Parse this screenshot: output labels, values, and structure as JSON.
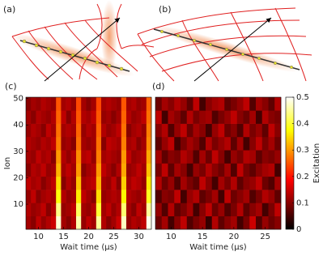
{
  "panel_labels": [
    "(a)",
    "(b)"
  ],
  "chart_data": [
    {
      "type": "heatmap",
      "label": "(c)",
      "xlabel": "Wait time (μs)",
      "ylabel": "Ion",
      "x": [
        8,
        9,
        10,
        11,
        12,
        13,
        14,
        15,
        16,
        17,
        18,
        19,
        20,
        21,
        22,
        23,
        24,
        25,
        26,
        27,
        28,
        29,
        30,
        31,
        32
      ],
      "y": [
        3,
        8,
        13,
        18,
        23,
        28,
        33,
        38,
        43,
        48
      ],
      "xlim": [
        7.5,
        32.5
      ],
      "ylim": [
        0.5,
        50.5
      ],
      "xticks": [
        10,
        15,
        20,
        25,
        30
      ],
      "yticks": [
        10,
        20,
        30,
        40,
        50
      ],
      "zlim": [
        0,
        0.5
      ],
      "z": [
        [
          0.12,
          0.1,
          0.14,
          0.11,
          0.13,
          0.15,
          0.48,
          0.12,
          0.1,
          0.13,
          0.46,
          0.11,
          0.14,
          0.12,
          0.45,
          0.13,
          0.1,
          0.12,
          0.15,
          0.47,
          0.11,
          0.13,
          0.12,
          0.14,
          0.49
        ],
        [
          0.13,
          0.11,
          0.12,
          0.14,
          0.1,
          0.13,
          0.44,
          0.11,
          0.12,
          0.14,
          0.42,
          0.12,
          0.11,
          0.13,
          0.4,
          0.12,
          0.14,
          0.11,
          0.13,
          0.43,
          0.12,
          0.1,
          0.14,
          0.12,
          0.45
        ],
        [
          0.11,
          0.14,
          0.1,
          0.12,
          0.13,
          0.12,
          0.38,
          0.13,
          0.11,
          0.12,
          0.36,
          0.14,
          0.12,
          0.1,
          0.35,
          0.11,
          0.12,
          0.13,
          0.12,
          0.37,
          0.13,
          0.12,
          0.11,
          0.13,
          0.39
        ],
        [
          0.14,
          0.12,
          0.13,
          0.1,
          0.12,
          0.14,
          0.35,
          0.1,
          0.13,
          0.11,
          0.33,
          0.12,
          0.13,
          0.14,
          0.32,
          0.12,
          0.11,
          0.14,
          0.1,
          0.34,
          0.12,
          0.14,
          0.13,
          0.11,
          0.36
        ],
        [
          0.1,
          0.13,
          0.12,
          0.14,
          0.11,
          0.12,
          0.32,
          0.12,
          0.14,
          0.12,
          0.3,
          0.1,
          0.12,
          0.13,
          0.3,
          0.14,
          0.12,
          0.1,
          0.13,
          0.31,
          0.11,
          0.12,
          0.14,
          0.12,
          0.33
        ],
        [
          0.12,
          0.11,
          0.14,
          0.12,
          0.13,
          0.1,
          0.3,
          0.13,
          0.11,
          0.13,
          0.29,
          0.13,
          0.14,
          0.11,
          0.28,
          0.12,
          0.13,
          0.12,
          0.11,
          0.3,
          0.14,
          0.11,
          0.12,
          0.13,
          0.31
        ],
        [
          0.13,
          0.12,
          0.11,
          0.13,
          0.12,
          0.14,
          0.28,
          0.11,
          0.12,
          0.1,
          0.27,
          0.12,
          0.11,
          0.12,
          0.27,
          0.1,
          0.14,
          0.13,
          0.12,
          0.28,
          0.12,
          0.13,
          0.1,
          0.12,
          0.29
        ],
        [
          0.11,
          0.13,
          0.12,
          0.1,
          0.14,
          0.12,
          0.27,
          0.12,
          0.13,
          0.12,
          0.26,
          0.11,
          0.13,
          0.12,
          0.26,
          0.13,
          0.11,
          0.12,
          0.14,
          0.27,
          0.1,
          0.12,
          0.13,
          0.11,
          0.28
        ],
        [
          0.12,
          0.1,
          0.13,
          0.12,
          0.11,
          0.13,
          0.26,
          0.14,
          0.1,
          0.13,
          0.25,
          0.13,
          0.12,
          0.14,
          0.25,
          0.11,
          0.12,
          0.1,
          0.12,
          0.26,
          0.13,
          0.11,
          0.12,
          0.14,
          0.27
        ],
        [
          0.1,
          0.12,
          0.11,
          0.13,
          0.12,
          0.11,
          0.25,
          0.12,
          0.13,
          0.11,
          0.24,
          0.12,
          0.1,
          0.12,
          0.24,
          0.12,
          0.13,
          0.12,
          0.11,
          0.25,
          0.12,
          0.13,
          0.11,
          0.12,
          0.26
        ]
      ]
    },
    {
      "type": "heatmap",
      "label": "(d)",
      "xlabel": "Wait time (μs)",
      "x": [
        8,
        9,
        10,
        11,
        12,
        13,
        14,
        15,
        16,
        17,
        18,
        19,
        20,
        21,
        22,
        23,
        24,
        25,
        26,
        27
      ],
      "y": [
        3,
        8,
        13,
        18,
        23,
        28,
        33,
        38,
        43,
        48
      ],
      "xlim": [
        7.5,
        27.5
      ],
      "ylim": [
        0.5,
        50.5
      ],
      "xticks": [
        10,
        15,
        20,
        25
      ],
      "zlim": [
        0,
        0.5
      ],
      "zticks": [
        0,
        0.1,
        0.2,
        0.3,
        0.4,
        0.5
      ],
      "zlabel": "Excitation",
      "z": [
        [
          0.08,
          0.12,
          0.05,
          0.1,
          0.14,
          0.06,
          0.09,
          0.11,
          0.04,
          0.13,
          0.07,
          0.1,
          0.12,
          0.05,
          0.09,
          0.15,
          0.06,
          0.11,
          0.08,
          0.1
        ],
        [
          0.11,
          0.06,
          0.13,
          0.07,
          0.09,
          0.12,
          0.05,
          0.1,
          0.14,
          0.08,
          0.11,
          0.06,
          0.09,
          0.13,
          0.07,
          0.1,
          0.12,
          0.05,
          0.09,
          0.14
        ],
        [
          0.06,
          0.1,
          0.09,
          0.14,
          0.05,
          0.11,
          0.13,
          0.07,
          0.09,
          0.12,
          0.05,
          0.14,
          0.08,
          0.1,
          0.12,
          0.06,
          0.09,
          0.13,
          0.11,
          0.07
        ],
        [
          0.13,
          0.08,
          0.11,
          0.06,
          0.12,
          0.09,
          0.07,
          0.14,
          0.1,
          0.05,
          0.12,
          0.09,
          0.13,
          0.07,
          0.1,
          0.11,
          0.14,
          0.08,
          0.06,
          0.12
        ],
        [
          0.09,
          0.14,
          0.07,
          0.12,
          0.1,
          0.05,
          0.11,
          0.09,
          0.13,
          0.1,
          0.08,
          0.12,
          0.06,
          0.14,
          0.09,
          0.07,
          0.1,
          0.12,
          0.13,
          0.05
        ],
        [
          0.12,
          0.07,
          0.1,
          0.09,
          0.13,
          0.11,
          0.06,
          0.12,
          0.08,
          0.14,
          0.1,
          0.05,
          0.11,
          0.09,
          0.13,
          0.12,
          0.07,
          0.1,
          0.09,
          0.11
        ],
        [
          0.07,
          0.11,
          0.14,
          0.05,
          0.09,
          0.12,
          0.1,
          0.06,
          0.13,
          0.09,
          0.11,
          0.13,
          0.07,
          0.12,
          0.05,
          0.1,
          0.14,
          0.09,
          0.12,
          0.08
        ],
        [
          0.1,
          0.13,
          0.06,
          0.11,
          0.14,
          0.08,
          0.12,
          0.1,
          0.05,
          0.11,
          0.14,
          0.08,
          0.1,
          0.06,
          0.13,
          0.09,
          0.11,
          0.07,
          0.14,
          0.1
        ],
        [
          0.14,
          0.05,
          0.12,
          0.1,
          0.07,
          0.13,
          0.09,
          0.11,
          0.12,
          0.06,
          0.09,
          0.11,
          0.14,
          0.1,
          0.08,
          0.12,
          0.05,
          0.13,
          0.1,
          0.09
        ],
        [
          0.08,
          0.12,
          0.1,
          0.13,
          0.11,
          0.07,
          0.14,
          0.05,
          0.1,
          0.12,
          0.13,
          0.07,
          0.09,
          0.11,
          0.14,
          0.06,
          0.12,
          0.1,
          0.07,
          0.13
        ]
      ]
    }
  ]
}
